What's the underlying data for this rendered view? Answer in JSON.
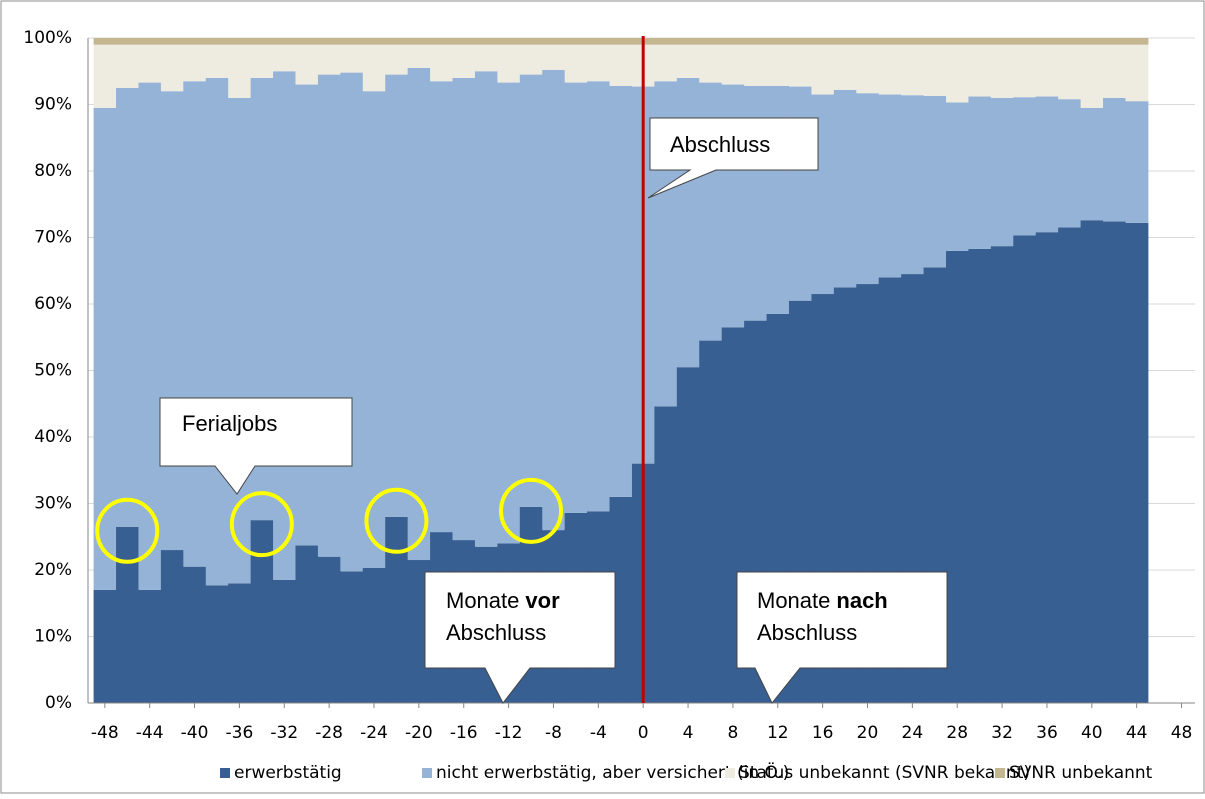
{
  "chart_data": {
    "type": "stacked_bar",
    "x": [
      -48,
      -46,
      -44,
      -42,
      -40,
      -38,
      -36,
      -34,
      -32,
      -30,
      -28,
      -26,
      -24,
      -22,
      -20,
      -18,
      -16,
      -14,
      -12,
      -10,
      -8,
      -6,
      -4,
      -2,
      0,
      2,
      4,
      6,
      8,
      10,
      12,
      14,
      16,
      18,
      20,
      22,
      24,
      26,
      28,
      30,
      32,
      34,
      36,
      38,
      40,
      42,
      44
    ],
    "series": [
      {
        "name": "erwerbstätig",
        "color": "#375f91",
        "values": [
          17,
          26.5,
          17,
          23,
          20.5,
          17.7,
          18,
          27.5,
          18.5,
          23.7,
          22,
          19.8,
          20.3,
          28,
          21.5,
          25.7,
          24.5,
          23.5,
          24,
          29.5,
          26,
          28.6,
          28.8,
          31,
          36,
          44.6,
          50.5,
          54.5,
          56.5,
          57.5,
          58.5,
          60.5,
          61.5,
          62.5,
          63,
          64,
          64.5,
          65.5,
          68,
          68.3,
          68.7,
          70.3,
          70.8,
          71.5,
          72.6,
          72.4,
          72.2
        ]
      },
      {
        "name": "nicht erwerbstätig, aber versichert (in Ö.)",
        "color": "#95b3d7",
        "values": [
          72.5,
          66,
          76.3,
          69,
          73,
          76.3,
          73,
          66.5,
          76.5,
          69.3,
          72.5,
          75,
          71.7,
          66.5,
          74,
          67.8,
          69.5,
          71.5,
          69.3,
          65,
          69.2,
          64.7,
          64.7,
          61.8,
          56.7,
          48.9,
          43.5,
          38.8,
          36.5,
          35.3,
          34.3,
          32.2,
          30,
          29.7,
          28.7,
          27.5,
          26.9,
          25.8,
          22.3,
          22.9,
          22.3,
          20.8,
          20.4,
          19.3,
          16.9,
          18.6,
          18.3
        ]
      },
      {
        "name": "Status unbekannt (SVNR bekannt)",
        "color": "#eeece1",
        "values": [
          9.5,
          6.5,
          5.7,
          7,
          5.5,
          5,
          8,
          5,
          4,
          6,
          4.5,
          4.2,
          7,
          4.5,
          3.5,
          5.5,
          5,
          4,
          5.7,
          4.5,
          3.8,
          5.7,
          5.5,
          6.2,
          6.3,
          5.5,
          5,
          5.7,
          6,
          6.2,
          6.2,
          6.3,
          7.5,
          6.8,
          7.3,
          7.5,
          7.6,
          7.7,
          8.7,
          7.8,
          8,
          7.9,
          7.8,
          8.2,
          9.5,
          8,
          8.5
        ]
      },
      {
        "name": "SVNR unbekannt",
        "color": "#c4b68f",
        "values": [
          1,
          1,
          1,
          1,
          1,
          1,
          1,
          1,
          1,
          1,
          1,
          1,
          1,
          1,
          1,
          1,
          1,
          1,
          1,
          1,
          1,
          1,
          1,
          1,
          1,
          1,
          1,
          1,
          1,
          1,
          1,
          1,
          1,
          1,
          1,
          1,
          1,
          1,
          1,
          1,
          1,
          1,
          1,
          1,
          1,
          1,
          1
        ]
      }
    ],
    "xlim": [
      -49.5,
      49.2
    ],
    "xticks": [
      -48,
      -44,
      -40,
      -36,
      -32,
      -28,
      -24,
      -20,
      -16,
      -12,
      -8,
      -4,
      0,
      4,
      8,
      12,
      16,
      20,
      24,
      28,
      32,
      36,
      40,
      44,
      48
    ],
    "ylim": [
      0,
      100
    ],
    "yticks": [
      {
        "value": 0,
        "label": "0%"
      },
      {
        "value": 10,
        "label": "10%"
      },
      {
        "value": 20,
        "label": "20%"
      },
      {
        "value": 30,
        "label": "30%"
      },
      {
        "value": 40,
        "label": "40%"
      },
      {
        "value": 50,
        "label": "50%"
      },
      {
        "value": 60,
        "label": "60%"
      },
      {
        "value": 70,
        "label": "70%"
      },
      {
        "value": 80,
        "label": "80%"
      },
      {
        "value": 90,
        "label": "90%"
      },
      {
        "value": 100,
        "label": "100%"
      }
    ],
    "grid": true,
    "vline": {
      "x": 0,
      "color": "#c00000"
    },
    "highlights": [
      -46,
      -34,
      -22,
      -10
    ],
    "highlight_color": "#ffff00",
    "annotations": [
      {
        "text": "Abschluss"
      },
      {
        "text": "Ferialjobs"
      },
      {
        "parts": [
          "Monate",
          "vor"
        ],
        "line2": "Abschluss"
      },
      {
        "parts": [
          "Monate",
          "nach"
        ],
        "line2": "Abschluss"
      }
    ],
    "legend": "bottom"
  }
}
